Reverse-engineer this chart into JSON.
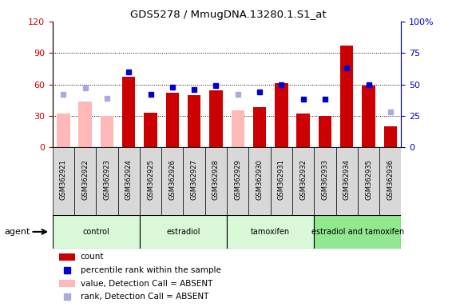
{
  "title": "GDS5278 / MmugDNA.13280.1.S1_at",
  "samples": [
    "GSM362921",
    "GSM362922",
    "GSM362923",
    "GSM362924",
    "GSM362925",
    "GSM362926",
    "GSM362927",
    "GSM362928",
    "GSM362929",
    "GSM362930",
    "GSM362931",
    "GSM362932",
    "GSM362933",
    "GSM362934",
    "GSM362935",
    "GSM362936"
  ],
  "count_present": [
    null,
    null,
    null,
    67,
    33,
    52,
    50,
    54,
    null,
    38,
    61,
    32,
    30,
    97,
    59,
    20
  ],
  "count_absent": [
    32,
    44,
    30,
    null,
    null,
    null,
    null,
    null,
    35,
    null,
    null,
    null,
    null,
    null,
    null,
    null
  ],
  "rank_present": [
    null,
    null,
    null,
    60,
    42,
    48,
    46,
    49,
    null,
    44,
    50,
    38,
    38,
    63,
    50,
    null
  ],
  "rank_absent": [
    42,
    47,
    39,
    null,
    null,
    null,
    null,
    null,
    42,
    null,
    null,
    null,
    null,
    null,
    null,
    28
  ],
  "groups": [
    {
      "label": "control",
      "start": 0,
      "end": 3,
      "color": "#d8f8d8"
    },
    {
      "label": "estradiol",
      "start": 4,
      "end": 7,
      "color": "#d8f8d8"
    },
    {
      "label": "tamoxifen",
      "start": 8,
      "end": 11,
      "color": "#d8f8d8"
    },
    {
      "label": "estradiol and tamoxifen",
      "start": 12,
      "end": 15,
      "color": "#90e890"
    }
  ],
  "ylim_left": [
    0,
    120
  ],
  "ylim_right": [
    0,
    100
  ],
  "yticks_left": [
    0,
    30,
    60,
    90,
    120
  ],
  "yticks_right": [
    0,
    25,
    50,
    75,
    100
  ],
  "ytick_labels_right": [
    "0",
    "25",
    "50",
    "75",
    "100%"
  ],
  "left_axis_color": "#cc0000",
  "right_axis_color": "#0000cc",
  "bar_color_present": "#cc0000",
  "bar_color_absent": "#ffb8b8",
  "dot_color_present": "#0000cc",
  "dot_color_absent": "#aaaadd",
  "background_color": "#ffffff"
}
